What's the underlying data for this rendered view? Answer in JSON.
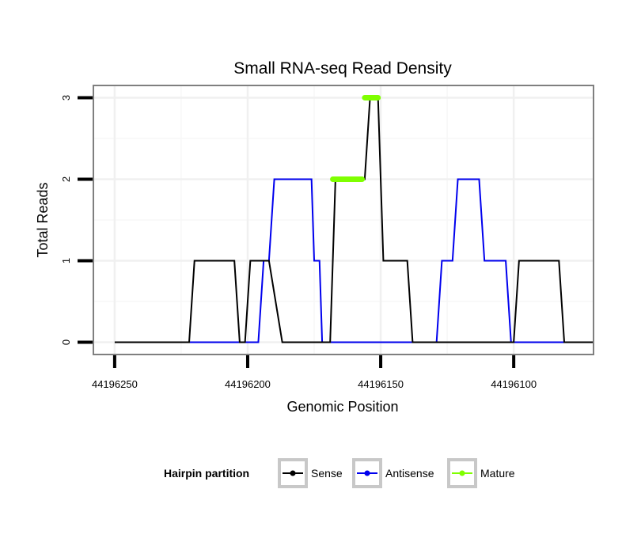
{
  "chart_data": {
    "type": "line",
    "title": "Small RNA-seq Read Density",
    "xlabel": "Genomic Position",
    "ylabel": "Total Reads",
    "xlim": [
      44196258,
      44196070
    ],
    "ylim": [
      -0.15,
      3.15
    ],
    "x_reversed": true,
    "grid": true,
    "x_ticks": [
      44196250,
      44196200,
      44196150,
      44196100
    ],
    "x_tick_labels": [
      "44196250",
      "44196200",
      "44196150",
      "44196100"
    ],
    "y_ticks": [
      0,
      1,
      2,
      3
    ],
    "y_tick_labels": [
      "0",
      "1",
      "2",
      "3"
    ],
    "legend": {
      "title": "Hairpin partition",
      "position": "bottom",
      "entries": [
        "Sense",
        "Antisense",
        "Mature"
      ]
    },
    "series": [
      {
        "name": "Sense",
        "color": "#000000",
        "x": [
          44196250,
          44196222,
          44196220,
          44196205,
          44196203,
          44196201,
          44196199,
          44196192,
          44196187,
          44196177,
          44196169,
          44196167,
          44196159,
          44196156,
          44196154,
          44196151,
          44196149,
          44196140,
          44196138,
          44196129,
          44196100,
          44196098,
          44196083,
          44196081,
          44196070
        ],
        "values": [
          0,
          0,
          1,
          1,
          0,
          0,
          1,
          1,
          0,
          0,
          0,
          2,
          2,
          2,
          3,
          3,
          1,
          1,
          0,
          0,
          0,
          1,
          1,
          0,
          0
        ]
      },
      {
        "name": "Antisense",
        "color": "#0000ee",
        "x": [
          44196222,
          44196196,
          44196194,
          44196192,
          44196190,
          44196176,
          44196175,
          44196173,
          44196172,
          44196129,
          44196127,
          44196123,
          44196121,
          44196113,
          44196111,
          44196103,
          44196101,
          44196070
        ],
        "values": [
          0,
          0,
          1,
          1,
          2,
          2,
          1,
          1,
          0,
          0,
          1,
          1,
          2,
          2,
          1,
          1,
          0,
          0
        ]
      },
      {
        "name": "Mature",
        "color": "#7fff00",
        "segments": [
          {
            "x": [
              44196168,
              44196157
            ],
            "values": [
              2,
              2
            ]
          },
          {
            "x": [
              44196156,
              44196151
            ],
            "values": [
              3,
              3
            ]
          }
        ]
      }
    ]
  }
}
